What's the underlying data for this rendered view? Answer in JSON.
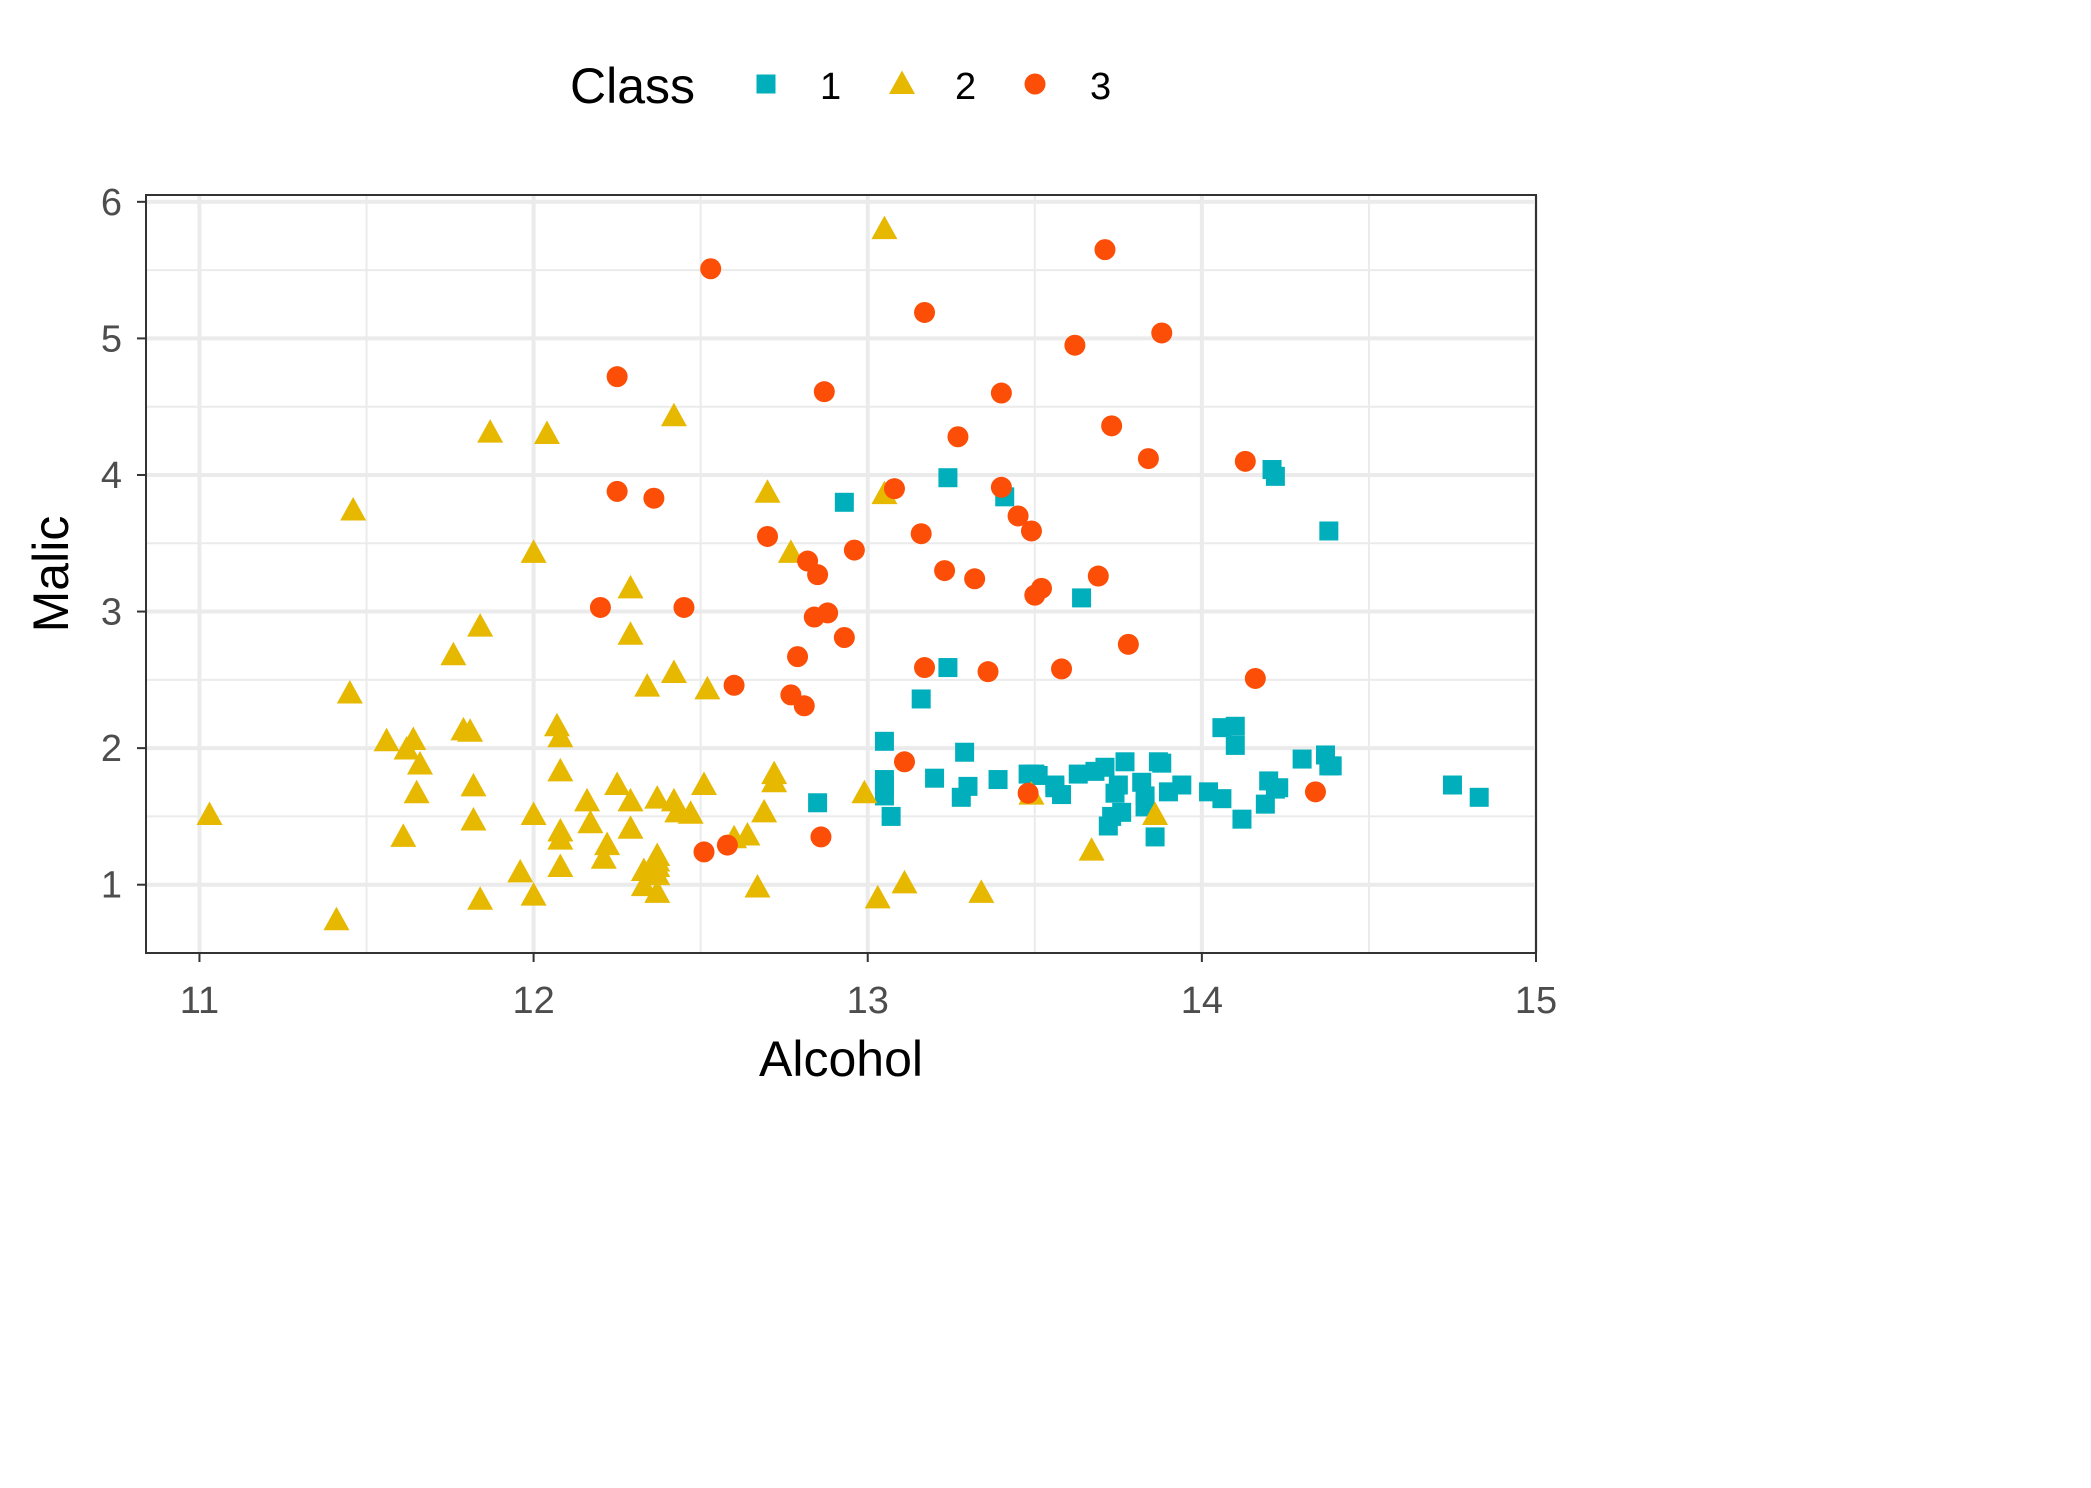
{
  "chart_data": {
    "type": "scatter",
    "xlabel": "Alcohol",
    "ylabel": "Malic",
    "xlim": [
      10.84,
      15.0
    ],
    "ylim": [
      0.5,
      6.05
    ],
    "xticks": [
      "11",
      "12",
      "13",
      "14",
      "15"
    ],
    "yticks": [
      "1",
      "2",
      "3",
      "4",
      "5",
      "6"
    ],
    "grid": true,
    "legend": {
      "title": "Class",
      "position": "top"
    },
    "series": [
      {
        "name": "1",
        "shape": "square",
        "color": "#00AFBB",
        "points": [
          [
            14.23,
            1.71
          ],
          [
            13.2,
            1.78
          ],
          [
            13.16,
            2.36
          ],
          [
            14.37,
            1.95
          ],
          [
            13.24,
            2.59
          ],
          [
            14.2,
            1.76
          ],
          [
            14.39,
            1.87
          ],
          [
            14.06,
            2.15
          ],
          [
            14.83,
            1.64
          ],
          [
            13.86,
            1.35
          ],
          [
            14.1,
            2.16
          ],
          [
            14.12,
            1.48
          ],
          [
            13.75,
            1.73
          ],
          [
            14.75,
            1.73
          ],
          [
            14.38,
            1.87
          ],
          [
            13.63,
            1.81
          ],
          [
            14.3,
            1.92
          ],
          [
            13.83,
            1.57
          ],
          [
            14.19,
            1.59
          ],
          [
            13.64,
            3.1
          ],
          [
            14.06,
            1.63
          ],
          [
            12.93,
            3.8
          ],
          [
            13.71,
            1.86
          ],
          [
            12.85,
            1.6
          ],
          [
            13.5,
            1.81
          ],
          [
            13.05,
            2.05
          ],
          [
            13.39,
            1.77
          ],
          [
            13.3,
            1.72
          ],
          [
            13.87,
            1.9
          ],
          [
            14.02,
            1.68
          ],
          [
            13.73,
            1.5
          ],
          [
            13.58,
            1.66
          ],
          [
            13.68,
            1.83
          ],
          [
            13.76,
            1.53
          ],
          [
            13.51,
            1.8
          ],
          [
            13.48,
            1.81
          ],
          [
            13.28,
            1.64
          ],
          [
            13.05,
            1.65
          ],
          [
            13.07,
            1.5
          ],
          [
            14.22,
            3.99
          ],
          [
            13.56,
            1.71
          ],
          [
            13.41,
            3.84
          ],
          [
            13.88,
            1.89
          ],
          [
            13.24,
            3.98
          ],
          [
            13.05,
            1.77
          ],
          [
            14.21,
            4.04
          ],
          [
            14.38,
            3.59
          ],
          [
            13.9,
            1.68
          ],
          [
            14.1,
            2.02
          ],
          [
            13.94,
            1.73
          ],
          [
            13.05,
            1.73
          ],
          [
            13.83,
            1.65
          ],
          [
            13.82,
            1.75
          ],
          [
            13.77,
            1.9
          ],
          [
            13.74,
            1.67
          ],
          [
            13.56,
            1.73
          ],
          [
            14.22,
            1.7
          ],
          [
            13.29,
            1.97
          ],
          [
            13.72,
            1.43
          ]
        ]
      },
      {
        "name": "2",
        "shape": "triangle",
        "color": "#E7B800",
        "points": [
          [
            12.37,
            0.94
          ],
          [
            12.33,
            1.1
          ],
          [
            12.64,
            1.36
          ],
          [
            13.67,
            1.25
          ],
          [
            12.37,
            1.13
          ],
          [
            12.17,
            1.45
          ],
          [
            12.37,
            1.21
          ],
          [
            13.11,
            1.01
          ],
          [
            12.37,
            1.17
          ],
          [
            13.34,
            0.94
          ],
          [
            12.21,
            1.19
          ],
          [
            12.29,
            1.61
          ],
          [
            13.86,
            1.51
          ],
          [
            13.49,
            1.66
          ],
          [
            12.99,
            1.67
          ],
          [
            11.96,
            1.09
          ],
          [
            11.66,
            1.88
          ],
          [
            13.03,
            0.9
          ],
          [
            11.84,
            2.89
          ],
          [
            12.33,
            0.99
          ],
          [
            12.7,
            3.87
          ],
          [
            12.0,
            0.92
          ],
          [
            12.72,
            1.81
          ],
          [
            12.08,
            1.13
          ],
          [
            13.05,
            3.86
          ],
          [
            11.84,
            0.89
          ],
          [
            12.67,
            0.98
          ],
          [
            12.16,
            1.61
          ],
          [
            11.65,
            1.67
          ],
          [
            11.64,
            2.06
          ],
          [
            12.08,
            1.33
          ],
          [
            12.08,
            1.83
          ],
          [
            12.0,
            1.51
          ],
          [
            12.69,
            1.53
          ],
          [
            12.29,
            2.83
          ],
          [
            11.62,
            1.99
          ],
          [
            12.47,
            1.52
          ],
          [
            11.81,
            2.12
          ],
          [
            12.29,
            1.41
          ],
          [
            12.37,
            1.07
          ],
          [
            12.29,
            3.17
          ],
          [
            12.08,
            2.08
          ],
          [
            12.6,
            1.34
          ],
          [
            12.34,
            2.45
          ],
          [
            11.82,
            1.72
          ],
          [
            12.51,
            1.73
          ],
          [
            12.42,
            2.55
          ],
          [
            12.25,
            1.73
          ],
          [
            12.72,
            1.75
          ],
          [
            12.22,
            1.29
          ],
          [
            11.61,
            1.35
          ],
          [
            11.46,
            3.74
          ],
          [
            12.52,
            2.43
          ],
          [
            11.76,
            2.68
          ],
          [
            11.41,
            0.74
          ],
          [
            12.08,
            1.39
          ],
          [
            11.03,
            1.51
          ],
          [
            11.82,
            1.47
          ],
          [
            12.42,
            1.61
          ],
          [
            12.77,
            3.43
          ],
          [
            12.0,
            3.43
          ],
          [
            11.45,
            2.4
          ],
          [
            11.56,
            2.05
          ],
          [
            12.42,
            4.43
          ],
          [
            13.05,
            5.8
          ],
          [
            11.87,
            4.31
          ],
          [
            12.07,
            2.16
          ],
          [
            12.43,
            1.53
          ],
          [
            11.79,
            2.13
          ],
          [
            12.37,
            1.63
          ],
          [
            12.04,
            4.3
          ]
        ]
      },
      {
        "name": "3",
        "shape": "circle",
        "color": "#FC4E07",
        "points": [
          [
            12.86,
            1.35
          ],
          [
            12.88,
            2.99
          ],
          [
            12.81,
            2.31
          ],
          [
            12.7,
            3.55
          ],
          [
            12.51,
            1.24
          ],
          [
            12.6,
            2.46
          ],
          [
            12.25,
            4.72
          ],
          [
            12.53,
            5.51
          ],
          [
            13.49,
            3.59
          ],
          [
            12.84,
            2.96
          ],
          [
            12.93,
            2.81
          ],
          [
            13.36,
            2.56
          ],
          [
            13.52,
            3.17
          ],
          [
            13.62,
            4.95
          ],
          [
            12.25,
            3.88
          ],
          [
            13.16,
            3.57
          ],
          [
            13.88,
            5.04
          ],
          [
            12.87,
            4.61
          ],
          [
            13.32,
            3.24
          ],
          [
            13.08,
            3.9
          ],
          [
            13.5,
            3.12
          ],
          [
            12.79,
            2.67
          ],
          [
            13.11,
            1.9
          ],
          [
            13.23,
            3.3
          ],
          [
            12.58,
            1.29
          ],
          [
            13.17,
            5.19
          ],
          [
            13.84,
            4.12
          ],
          [
            12.45,
            3.03
          ],
          [
            14.34,
            1.68
          ],
          [
            13.48,
            1.67
          ],
          [
            12.36,
            3.83
          ],
          [
            13.69,
            3.26
          ],
          [
            12.85,
            3.27
          ],
          [
            12.96,
            3.45
          ],
          [
            13.78,
            2.76
          ],
          [
            13.73,
            4.36
          ],
          [
            13.45,
            3.7
          ],
          [
            12.82,
            3.37
          ],
          [
            13.58,
            2.58
          ],
          [
            13.4,
            4.6
          ],
          [
            12.2,
            3.03
          ],
          [
            12.77,
            2.39
          ],
          [
            14.16,
            2.51
          ],
          [
            13.71,
            5.65
          ],
          [
            13.4,
            3.91
          ],
          [
            13.27,
            4.28
          ],
          [
            13.17,
            2.59
          ],
          [
            14.13,
            4.1
          ]
        ]
      }
    ]
  }
}
